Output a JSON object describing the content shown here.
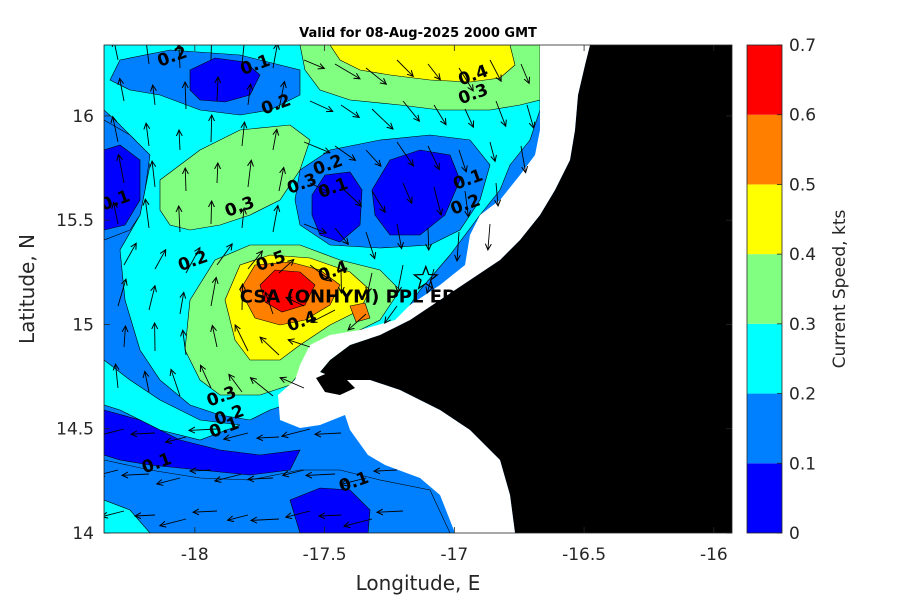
{
  "title": "Valid for 08-Aug-2025 2000 GMT",
  "x_label": "Longitude, E",
  "y_label": "Latitude, N",
  "colorbar_label": "Current Speed, kts",
  "site_label": "CSA (ONHYM) PPL EP",
  "colors": {
    "0.0-0.1": "#0000ff",
    "0.1-0.2": "#0080ff",
    "0.2-0.3": "#00ffff",
    "0.3-0.4": "#80ff80",
    "0.4-0.5": "#ffff00",
    "0.5-0.6": "#ff8000",
    "0.6-0.7": "#ff0000",
    "land": "#000000"
  },
  "chart_data": {
    "type": "heatmap",
    "title": "Valid for 08-Aug-2025 2000 GMT",
    "xlabel": "Longitude, E",
    "ylabel": "Latitude, N",
    "xlim": [
      -18.35,
      -15.93
    ],
    "ylim": [
      14.0,
      16.34
    ],
    "x_ticks": [
      "-18",
      "-17.5",
      "-17",
      "-16.5",
      "-16"
    ],
    "y_ticks": [
      "14",
      "14.5",
      "15",
      "15.5",
      "16"
    ],
    "colorbar": {
      "label": "Current Speed, kts",
      "ticks": [
        "0",
        "0.1",
        "0.2",
        "0.3",
        "0.4",
        "0.5",
        "0.6",
        "0.7"
      ],
      "range": [
        0,
        0.7
      ],
      "levels": [
        0,
        0.1,
        0.2,
        0.3,
        0.4,
        0.5,
        0.6,
        0.7
      ]
    },
    "contour_labels": [
      {
        "text": "0.2",
        "lon": -18.08,
        "lat": 16.26
      },
      {
        "text": "0.1",
        "lon": -17.76,
        "lat": 16.22
      },
      {
        "text": "0.4",
        "lon": -16.92,
        "lat": 16.17
      },
      {
        "text": "0.3",
        "lon": -16.92,
        "lat": 16.08
      },
      {
        "text": "0.2",
        "lon": -17.68,
        "lat": 16.03
      },
      {
        "text": "0.1",
        "lon": -16.94,
        "lat": 15.67
      },
      {
        "text": "0.2",
        "lon": -17.48,
        "lat": 15.74
      },
      {
        "text": "0.3",
        "lon": -17.58,
        "lat": 15.65
      },
      {
        "text": "0.1",
        "lon": -17.46,
        "lat": 15.63
      },
      {
        "text": "0.1",
        "lon": -18.3,
        "lat": 15.57
      },
      {
        "text": "0.2",
        "lon": -16.95,
        "lat": 15.55
      },
      {
        "text": "0.3",
        "lon": -17.82,
        "lat": 15.54
      },
      {
        "text": "0.2",
        "lon": -18.0,
        "lat": 15.28
      },
      {
        "text": "0.5",
        "lon": -17.7,
        "lat": 15.28
      },
      {
        "text": "0.4",
        "lon": -17.46,
        "lat": 15.23
      },
      {
        "text": "0.4",
        "lon": -17.58,
        "lat": 14.99
      },
      {
        "text": "0.3",
        "lon": -17.89,
        "lat": 14.63
      },
      {
        "text": "0.2",
        "lon": -17.86,
        "lat": 14.54
      },
      {
        "text": "0.1",
        "lon": -17.88,
        "lat": 14.48
      },
      {
        "text": "0.1",
        "lon": -18.14,
        "lat": 14.31
      },
      {
        "text": "0.1",
        "lon": -17.38,
        "lat": 14.22
      }
    ],
    "site_marker": {
      "name": "CSA (ONHYM) PPL EP",
      "lon": -17.11,
      "lat": 15.22,
      "symbol": "star"
    }
  }
}
